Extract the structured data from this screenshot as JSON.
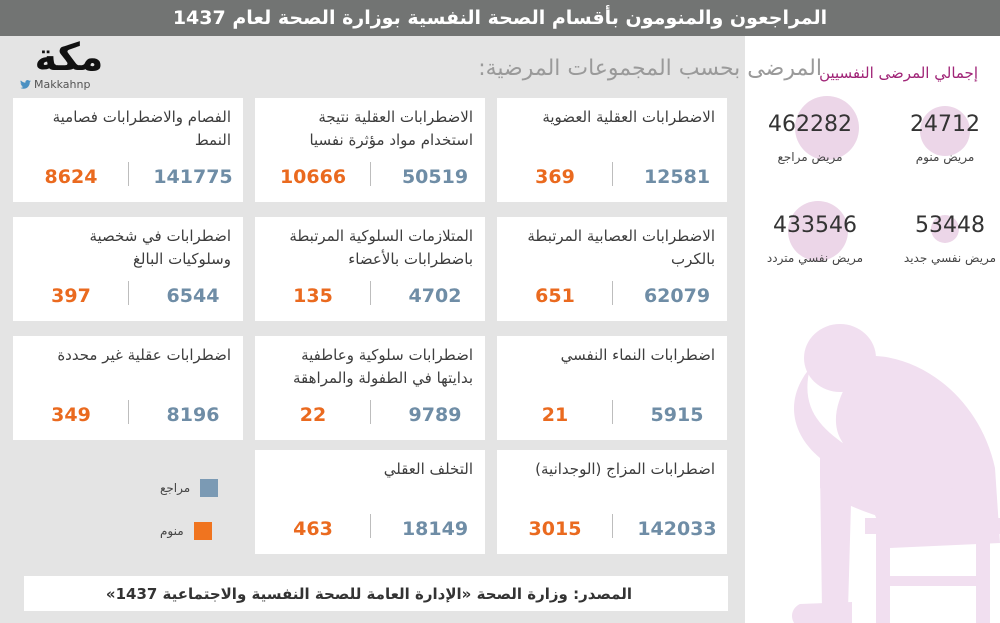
{
  "header": {
    "title": "المراجعون والمنومون بأقسام الصحة النفسية بوزارة الصحة لعام 1437"
  },
  "logo": {
    "mark": "مكة",
    "handle": "Makkahnp"
  },
  "section_title": "المرضى بحسب المجموعات المرضية:",
  "legend": {
    "review_label": "مراجع",
    "inpatient_label": "منوم"
  },
  "colors": {
    "review": "#6f8da6",
    "inpatient": "#ea6a1f",
    "review_swatch": "#7b9ab4",
    "inpatient_swatch": "#f0741f",
    "header_bg": "#727473",
    "accent_purple": "#a02477",
    "figure_pink": "#f1dff0"
  },
  "source": "المصدر: وزارة الصحة «الإدارة العامة للصحة النفسية والاجتماعية 1437»",
  "side_panel": {
    "title": "إجمالي المرضى النفسيين",
    "stats": [
      {
        "value": "24712",
        "label": "مريض منوم"
      },
      {
        "value": "462282",
        "label": "مريض مراجع"
      },
      {
        "value": "53448",
        "label": "مريض نفسي جديد"
      },
      {
        "value": "433546",
        "label": "مريض نفسي متردد"
      }
    ]
  },
  "chart_data": {
    "type": "table",
    "title": "المرضى بحسب المجموعات المرضية:",
    "series_names": [
      "مراجع",
      "منوم"
    ],
    "rows": [
      {
        "category": "الاضطرابات العقلية العضوية",
        "review": 12581,
        "inpatient": 369
      },
      {
        "category": "الاضطرابات العقلية نتيجة استخدام مواد مؤثرة نفسيا",
        "review": 50519,
        "inpatient": 10666
      },
      {
        "category": "الفصام والاضطرابات فصامية النمط",
        "review": 141775,
        "inpatient": 8624
      },
      {
        "category": "الاضطرابات العصابية المرتبطة بالكرب",
        "review": 62079,
        "inpatient": 651
      },
      {
        "category": "المتلازمات السلوكية المرتبطة باضطرابات بالأعضاء",
        "review": 4702,
        "inpatient": 135
      },
      {
        "category": "اضطرابات في شخصية وسلوكيات البالغ",
        "review": 6544,
        "inpatient": 397
      },
      {
        "category": "اضطرابات النماء النفسي",
        "review": 5915,
        "inpatient": 21
      },
      {
        "category": "اضطرابات سلوكية وعاطفية بدايتها في الطفولة والمراهقة",
        "review": 9789,
        "inpatient": 22
      },
      {
        "category": "اضطرابات عقلية غير محددة",
        "review": 8196,
        "inpatient": 349
      },
      {
        "category": "اضطرابات المزاج (الوجدانية)",
        "review": 142033,
        "inpatient": 3015
      },
      {
        "category": "التخلف العقلي",
        "review": 18149,
        "inpatient": 463
      }
    ]
  }
}
